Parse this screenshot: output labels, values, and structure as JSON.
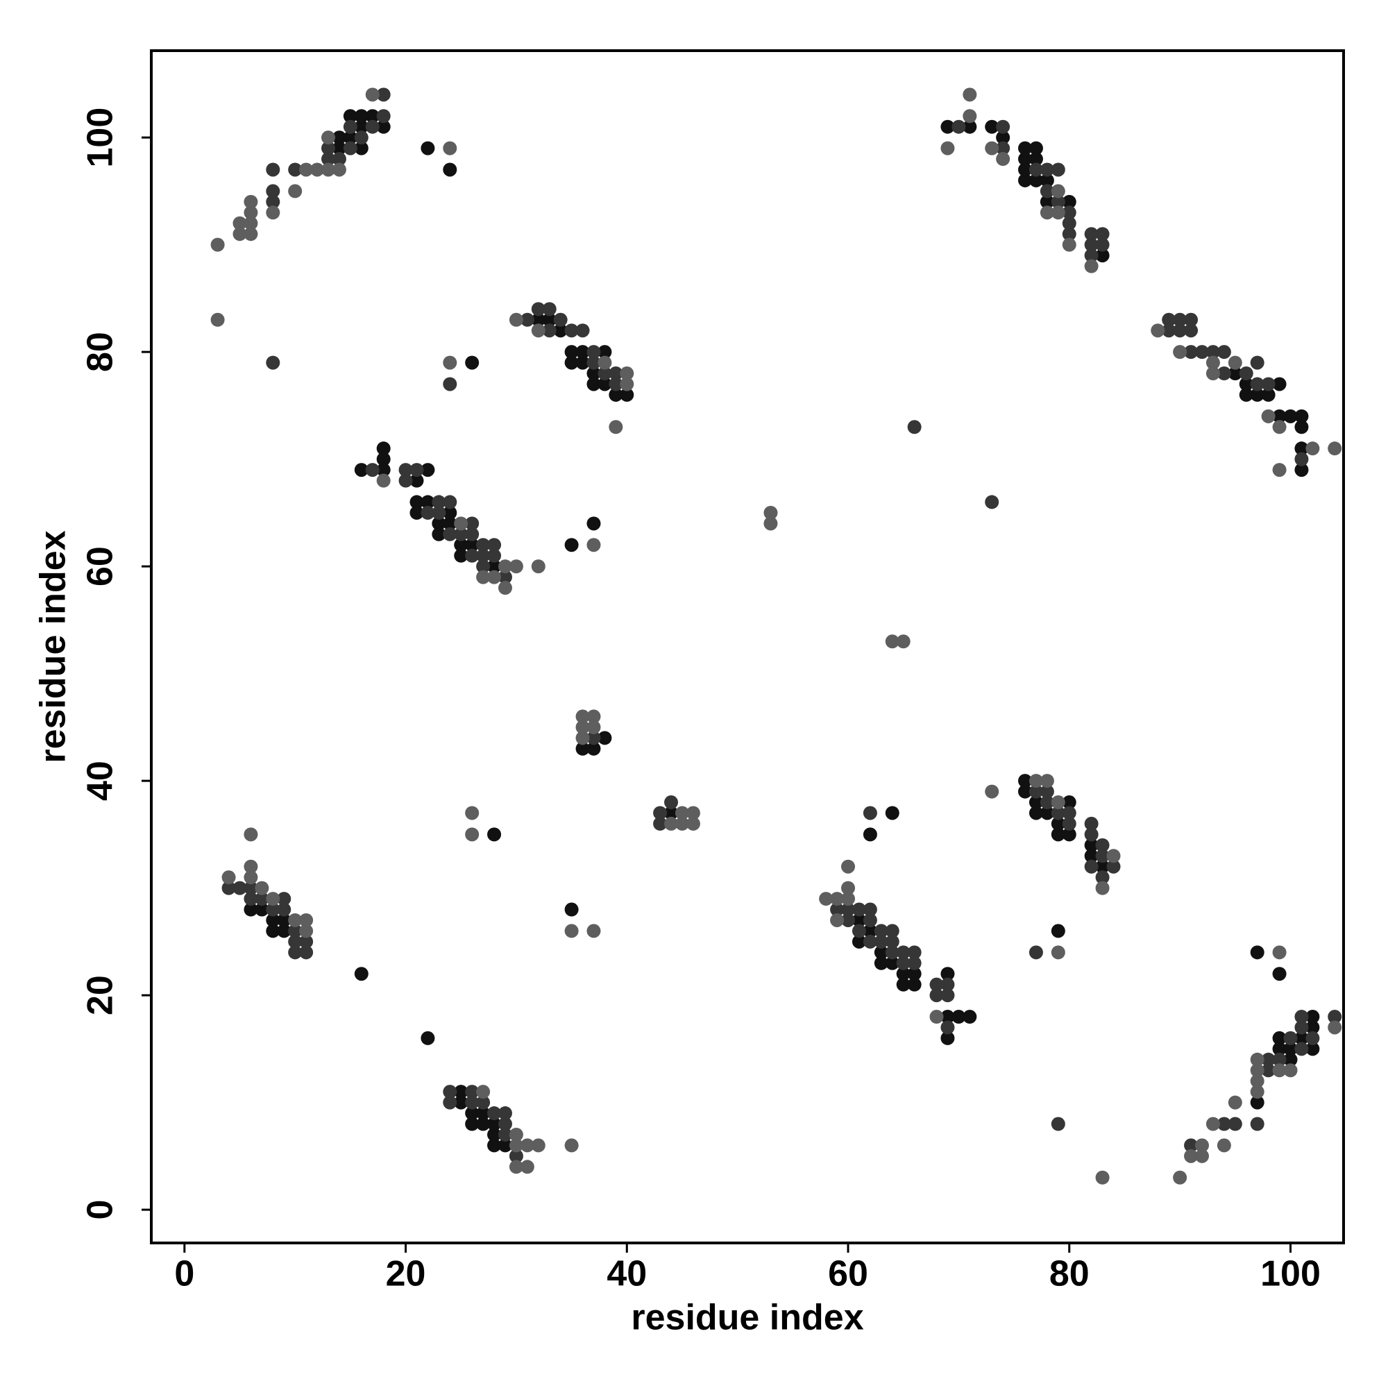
{
  "chart_data": {
    "type": "scatter",
    "x_label": "residue index",
    "y_label": "residue index",
    "xlim": [
      -3,
      104.8
    ],
    "ylim": [
      -3.1,
      108.1
    ],
    "xticks": [
      0,
      20,
      40,
      60,
      80,
      100
    ],
    "yticks": [
      0,
      20,
      40,
      60,
      80,
      100
    ],
    "series": [
      {
        "color": "#111111",
        "x": [
          14,
          14,
          15,
          15,
          16,
          16,
          16,
          17,
          18,
          22,
          24,
          26,
          32,
          33,
          34,
          35,
          35,
          36,
          36,
          37,
          37,
          38,
          38,
          39,
          40,
          16,
          18,
          18,
          18,
          21,
          22,
          21,
          21,
          22,
          23,
          23,
          24,
          24,
          25,
          25,
          26,
          28,
          35,
          37,
          36,
          37,
          38,
          44,
          69,
          71,
          73,
          74,
          76,
          76,
          76,
          76,
          77,
          77,
          77,
          78,
          78,
          80,
          83,
          95,
          96,
          96,
          97,
          98,
          99,
          99,
          100,
          101,
          101,
          101,
          101,
          61,
          61,
          62,
          63,
          63,
          64,
          65,
          65,
          66,
          66,
          69,
          69,
          69,
          70,
          71,
          62,
          64,
          76,
          76,
          77,
          77,
          78,
          79,
          79,
          80,
          80,
          82,
          82,
          83,
          79,
          97,
          99,
          99,
          100,
          100,
          101,
          102,
          102,
          102,
          97,
          99,
          6,
          7,
          8,
          8,
          9,
          9,
          16,
          22,
          28,
          35,
          25,
          25,
          26,
          26,
          27,
          27,
          28,
          28,
          28,
          29
        ],
        "values": [
          99,
          100,
          100,
          102,
          99,
          101,
          102,
          102,
          101,
          99,
          97,
          79,
          83,
          83,
          82,
          79,
          80,
          79,
          80,
          77,
          78,
          77,
          80,
          76,
          76,
          69,
          69,
          70,
          71,
          68,
          69,
          65,
          66,
          66,
          63,
          64,
          64,
          65,
          61,
          62,
          62,
          60,
          62,
          64,
          43,
          43,
          44,
          37,
          101,
          101,
          101,
          100,
          96,
          97,
          98,
          99,
          96,
          98,
          99,
          94,
          96,
          94,
          89,
          78,
          76,
          77,
          76,
          76,
          74,
          77,
          74,
          69,
          71,
          73,
          74,
          25,
          27,
          26,
          23,
          24,
          23,
          21,
          22,
          21,
          22,
          16,
          18,
          22,
          18,
          18,
          35,
          37,
          39,
          40,
          37,
          38,
          37,
          35,
          36,
          35,
          38,
          33,
          34,
          32,
          26,
          10,
          15,
          16,
          14,
          15,
          16,
          15,
          17,
          18,
          24,
          22,
          28,
          28,
          26,
          27,
          26,
          27,
          22,
          16,
          35,
          28,
          10,
          11,
          8,
          9,
          8,
          9,
          6,
          7,
          8,
          6
        ]
      },
      {
        "color": "#363636",
        "x": [
          8,
          8,
          8,
          8,
          10,
          13,
          13,
          14,
          15,
          15,
          16,
          17,
          18,
          18,
          24,
          31,
          32,
          33,
          33,
          34,
          35,
          36,
          37,
          37,
          38,
          39,
          39,
          17,
          20,
          20,
          21,
          22,
          23,
          23,
          24,
          24,
          25,
          26,
          26,
          26,
          27,
          27,
          27,
          28,
          28,
          29,
          66,
          73,
          37,
          43,
          43,
          44,
          70,
          74,
          74,
          77,
          78,
          78,
          79,
          79,
          80,
          80,
          80,
          82,
          82,
          82,
          83,
          83,
          89,
          89,
          90,
          90,
          91,
          91,
          91,
          92,
          93,
          94,
          94,
          96,
          97,
          97,
          98,
          101,
          59,
          60,
          60,
          61,
          61,
          62,
          62,
          62,
          63,
          63,
          64,
          64,
          64,
          65,
          65,
          66,
          66,
          68,
          68,
          69,
          69,
          69,
          62,
          77,
          78,
          78,
          79,
          80,
          80,
          82,
          82,
          82,
          83,
          83,
          83,
          84,
          77,
          91,
          94,
          95,
          97,
          98,
          98,
          99,
          100,
          101,
          101,
          101,
          102,
          104,
          79,
          4,
          5,
          6,
          6,
          7,
          8,
          9,
          9,
          10,
          10,
          10,
          11,
          11,
          24,
          24,
          26,
          26,
          27,
          28,
          29,
          29,
          29,
          30
        ],
        "values": [
          94,
          95,
          97,
          79,
          97,
          98,
          99,
          98,
          99,
          101,
          100,
          101,
          102,
          104,
          77,
          83,
          84,
          82,
          84,
          83,
          82,
          82,
          79,
          80,
          78,
          77,
          78,
          69,
          68,
          69,
          69,
          65,
          65,
          66,
          63,
          66,
          63,
          61,
          63,
          64,
          60,
          61,
          62,
          61,
          62,
          59,
          73,
          66,
          44,
          36,
          37,
          38,
          101,
          99,
          101,
          97,
          95,
          97,
          94,
          97,
          91,
          92,
          93,
          89,
          90,
          91,
          90,
          91,
          82,
          83,
          82,
          83,
          80,
          82,
          83,
          80,
          80,
          78,
          80,
          78,
          77,
          79,
          77,
          70,
          28,
          27,
          28,
          26,
          28,
          25,
          27,
          28,
          25,
          26,
          24,
          25,
          26,
          23,
          24,
          23,
          24,
          20,
          21,
          17,
          20,
          21,
          37,
          39,
          38,
          39,
          37,
          36,
          37,
          32,
          35,
          36,
          31,
          33,
          34,
          32,
          24,
          6,
          8,
          8,
          8,
          13,
          14,
          14,
          16,
          15,
          17,
          18,
          16,
          18,
          8,
          30,
          30,
          29,
          30,
          29,
          28,
          28,
          29,
          24,
          25,
          26,
          24,
          25,
          10,
          11,
          10,
          11,
          10,
          9,
          7,
          8,
          9,
          5
        ]
      },
      {
        "color": "#5e5e5e",
        "x": [
          3,
          3,
          5,
          5,
          6,
          6,
          6,
          6,
          8,
          10,
          11,
          12,
          13,
          13,
          14,
          17,
          24,
          24,
          30,
          32,
          38,
          39,
          40,
          40,
          18,
          25,
          27,
          28,
          29,
          29,
          30,
          32,
          37,
          53,
          53,
          64,
          65,
          36,
          36,
          36,
          37,
          37,
          44,
          45,
          45,
          46,
          46,
          69,
          71,
          71,
          73,
          74,
          78,
          79,
          79,
          80,
          82,
          88,
          90,
          93,
          93,
          95,
          98,
          99,
          99,
          102,
          104,
          58,
          59,
          59,
          60,
          60,
          60,
          68,
          73,
          77,
          78,
          79,
          83,
          84,
          79,
          90,
          91,
          92,
          92,
          93,
          94,
          95,
          97,
          97,
          97,
          97,
          99,
          100,
          104,
          99,
          83,
          4,
          6,
          6,
          6,
          7,
          8,
          10,
          11,
          11,
          26,
          26,
          35,
          37,
          27,
          30,
          30,
          30,
          31,
          31,
          32,
          35
        ],
        "values": [
          90,
          83,
          91,
          92,
          91,
          92,
          93,
          94,
          93,
          95,
          97,
          97,
          97,
          100,
          97,
          104,
          99,
          79,
          83,
          82,
          79,
          73,
          77,
          78,
          68,
          64,
          59,
          59,
          58,
          60,
          60,
          60,
          62,
          65,
          64,
          53,
          53,
          44,
          45,
          46,
          45,
          46,
          36,
          36,
          37,
          36,
          37,
          99,
          102,
          104,
          99,
          98,
          93,
          93,
          95,
          90,
          88,
          82,
          80,
          78,
          79,
          79,
          74,
          73,
          69,
          71,
          71,
          29,
          27,
          29,
          29,
          30,
          32,
          18,
          39,
          40,
          40,
          38,
          30,
          33,
          24,
          3,
          5,
          5,
          6,
          8,
          6,
          10,
          11,
          12,
          13,
          14,
          13,
          13,
          17,
          24,
          3,
          31,
          31,
          32,
          35,
          30,
          29,
          27,
          26,
          27,
          37,
          35,
          26,
          26,
          11,
          4,
          6,
          7,
          4,
          6,
          6,
          6
        ]
      }
    ]
  }
}
